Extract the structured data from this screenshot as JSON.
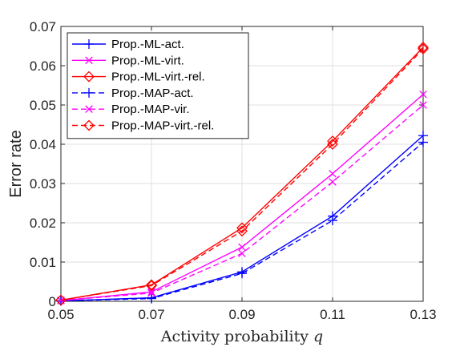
{
  "chart_data": {
    "type": "line",
    "title": "",
    "xlabel": "Activity probability",
    "xlabel_var": "q",
    "ylabel": "Error rate",
    "x": [
      0.05,
      0.07,
      0.09,
      0.11,
      0.13
    ],
    "x_tick_labels": [
      "0.05",
      "0.07",
      "0.09",
      "0.11",
      "0.13"
    ],
    "xlim": [
      0.05,
      0.13
    ],
    "y_ticks": [
      0,
      0.01,
      0.02,
      0.03,
      0.04,
      0.05,
      0.06,
      0.07
    ],
    "y_tick_labels": [
      "0",
      "0.01",
      "0.02",
      "0.03",
      "0.04",
      "0.05",
      "0.06",
      "0.07"
    ],
    "ylim": [
      0,
      0.07
    ],
    "grid": true,
    "legend_position": "top-left",
    "series": [
      {
        "name": "Prop.-ML-act.",
        "values": [
          0.0001,
          0.0009,
          0.0075,
          0.0217,
          0.0422
        ],
        "color": "#0000ff",
        "dash": "solid",
        "marker": "plus"
      },
      {
        "name": "Prop.-ML-virt.",
        "values": [
          0.0002,
          0.0024,
          0.0138,
          0.0325,
          0.0527
        ],
        "color": "#ff00ff",
        "dash": "solid",
        "marker": "x"
      },
      {
        "name": "Prop.-ML-virt.-rel.",
        "values": [
          0.0003,
          0.0042,
          0.0187,
          0.0408,
          0.0647
        ],
        "color": "#ff0000",
        "dash": "solid",
        "marker": "diamond"
      },
      {
        "name": "Prop.-MAP-act.",
        "values": [
          0.0001,
          0.0007,
          0.0071,
          0.0206,
          0.0405
        ],
        "color": "#0000ff",
        "dash": "dashed",
        "marker": "plus"
      },
      {
        "name": "Prop.-MAP-vir.",
        "values": [
          0.0002,
          0.0021,
          0.0122,
          0.0304,
          0.05
        ],
        "color": "#ff00ff",
        "dash": "dashed",
        "marker": "x"
      },
      {
        "name": "Prop.-MAP-virt.-rel.",
        "values": [
          0.0003,
          0.004,
          0.0179,
          0.04,
          0.0643
        ],
        "color": "#ff0000",
        "dash": "dashed",
        "marker": "diamond"
      }
    ]
  }
}
